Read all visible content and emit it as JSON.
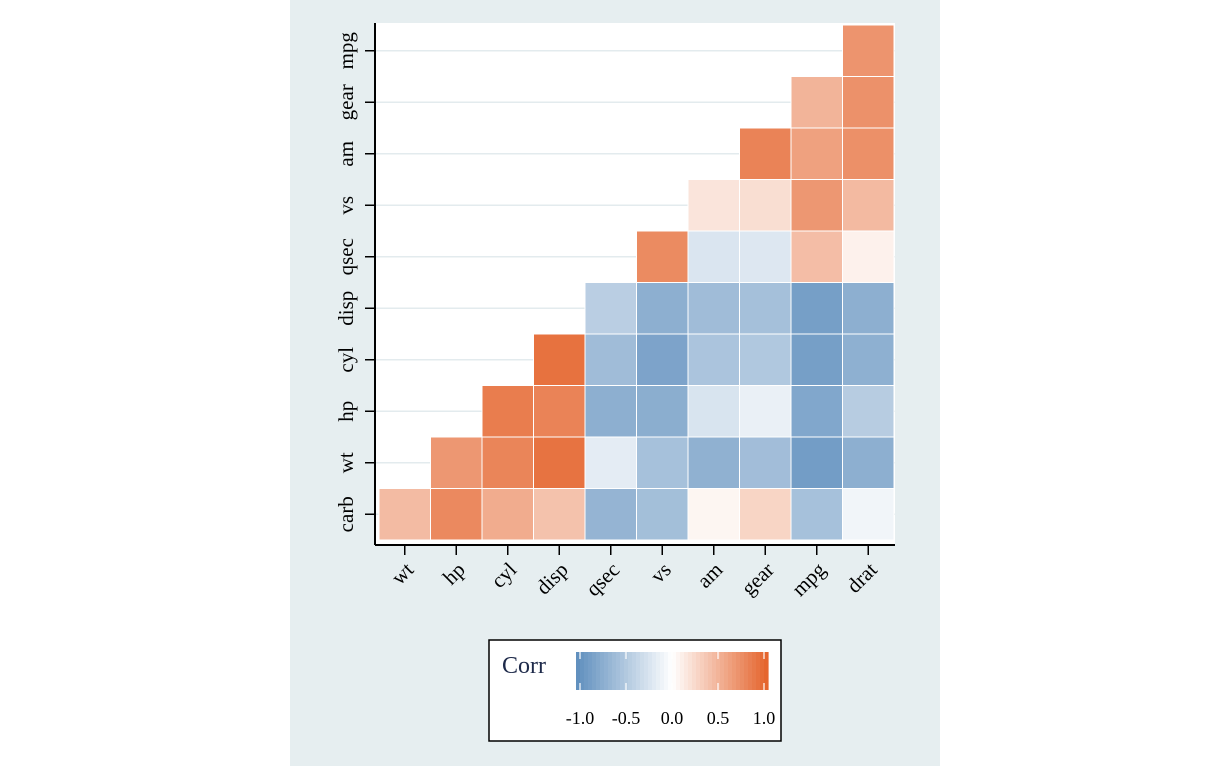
{
  "chart_data": {
    "type": "heatmap",
    "title": "",
    "xlabel": "",
    "ylabel": "",
    "x_categories": [
      "wt",
      "hp",
      "cyl",
      "disp",
      "qsec",
      "vs",
      "am",
      "gear",
      "mpg",
      "drat"
    ],
    "y_categories": [
      "carb",
      "wt",
      "hp",
      "cyl",
      "disp",
      "qsec",
      "vs",
      "am",
      "gear",
      "mpg"
    ],
    "cells": [
      {
        "x": "wt",
        "y": "carb",
        "value": 0.43
      },
      {
        "x": "hp",
        "y": "carb",
        "value": 0.75
      },
      {
        "x": "cyl",
        "y": "carb",
        "value": 0.53
      },
      {
        "x": "disp",
        "y": "carb",
        "value": 0.39
      },
      {
        "x": "qsec",
        "y": "carb",
        "value": -0.66
      },
      {
        "x": "vs",
        "y": "carb",
        "value": -0.57
      },
      {
        "x": "am",
        "y": "carb",
        "value": 0.06
      },
      {
        "x": "gear",
        "y": "carb",
        "value": 0.27
      },
      {
        "x": "mpg",
        "y": "carb",
        "value": -0.55
      },
      {
        "x": "drat",
        "y": "carb",
        "value": -0.09
      },
      {
        "x": "hp",
        "y": "wt",
        "value": 0.66
      },
      {
        "x": "cyl",
        "y": "wt",
        "value": 0.78
      },
      {
        "x": "disp",
        "y": "wt",
        "value": 0.89
      },
      {
        "x": "qsec",
        "y": "wt",
        "value": -0.17
      },
      {
        "x": "vs",
        "y": "wt",
        "value": -0.55
      },
      {
        "x": "am",
        "y": "wt",
        "value": -0.69
      },
      {
        "x": "gear",
        "y": "wt",
        "value": -0.58
      },
      {
        "x": "mpg",
        "y": "wt",
        "value": -0.87
      },
      {
        "x": "drat",
        "y": "wt",
        "value": -0.71
      },
      {
        "x": "cyl",
        "y": "hp",
        "value": 0.83
      },
      {
        "x": "disp",
        "y": "hp",
        "value": 0.79
      },
      {
        "x": "qsec",
        "y": "hp",
        "value": -0.71
      },
      {
        "x": "vs",
        "y": "hp",
        "value": -0.72
      },
      {
        "x": "am",
        "y": "hp",
        "value": -0.24
      },
      {
        "x": "gear",
        "y": "hp",
        "value": -0.13
      },
      {
        "x": "mpg",
        "y": "hp",
        "value": -0.78
      },
      {
        "x": "drat",
        "y": "hp",
        "value": -0.45
      },
      {
        "x": "disp",
        "y": "cyl",
        "value": 0.9
      },
      {
        "x": "qsec",
        "y": "cyl",
        "value": -0.59
      },
      {
        "x": "vs",
        "y": "cyl",
        "value": -0.81
      },
      {
        "x": "am",
        "y": "cyl",
        "value": -0.52
      },
      {
        "x": "gear",
        "y": "cyl",
        "value": -0.49
      },
      {
        "x": "mpg",
        "y": "cyl",
        "value": -0.85
      },
      {
        "x": "drat",
        "y": "cyl",
        "value": -0.7
      },
      {
        "x": "qsec",
        "y": "disp",
        "value": -0.43
      },
      {
        "x": "vs",
        "y": "disp",
        "value": -0.71
      },
      {
        "x": "am",
        "y": "disp",
        "value": -0.59
      },
      {
        "x": "gear",
        "y": "disp",
        "value": -0.56
      },
      {
        "x": "mpg",
        "y": "disp",
        "value": -0.85
      },
      {
        "x": "drat",
        "y": "disp",
        "value": -0.71
      },
      {
        "x": "vs",
        "y": "qsec",
        "value": 0.74
      },
      {
        "x": "am",
        "y": "qsec",
        "value": -0.23
      },
      {
        "x": "gear",
        "y": "qsec",
        "value": -0.21
      },
      {
        "x": "mpg",
        "y": "qsec",
        "value": 0.42
      },
      {
        "x": "drat",
        "y": "qsec",
        "value": 0.09
      },
      {
        "x": "am",
        "y": "vs",
        "value": 0.17
      },
      {
        "x": "gear",
        "y": "vs",
        "value": 0.21
      },
      {
        "x": "mpg",
        "y": "vs",
        "value": 0.66
      },
      {
        "x": "drat",
        "y": "vs",
        "value": 0.44
      },
      {
        "x": "gear",
        "y": "am",
        "value": 0.79
      },
      {
        "x": "mpg",
        "y": "am",
        "value": 0.6
      },
      {
        "x": "drat",
        "y": "am",
        "value": 0.71
      },
      {
        "x": "mpg",
        "y": "gear",
        "value": 0.48
      },
      {
        "x": "drat",
        "y": "gear",
        "value": 0.7
      },
      {
        "x": "drat",
        "y": "mpg",
        "value": 0.68
      }
    ],
    "legend": {
      "title": "Corr",
      "ticks": [
        -1.0,
        -0.5,
        0.0,
        0.5,
        1.0
      ],
      "tick_labels": [
        "-1.0",
        "-0.5",
        "0.0",
        "0.5",
        "1.0"
      ],
      "placement": "bottom"
    },
    "colors": {
      "low": "#5e8ebd",
      "mid": "#ffffff",
      "high": "#e4622a"
    },
    "value_range": [
      -1,
      1
    ],
    "grid": true
  }
}
